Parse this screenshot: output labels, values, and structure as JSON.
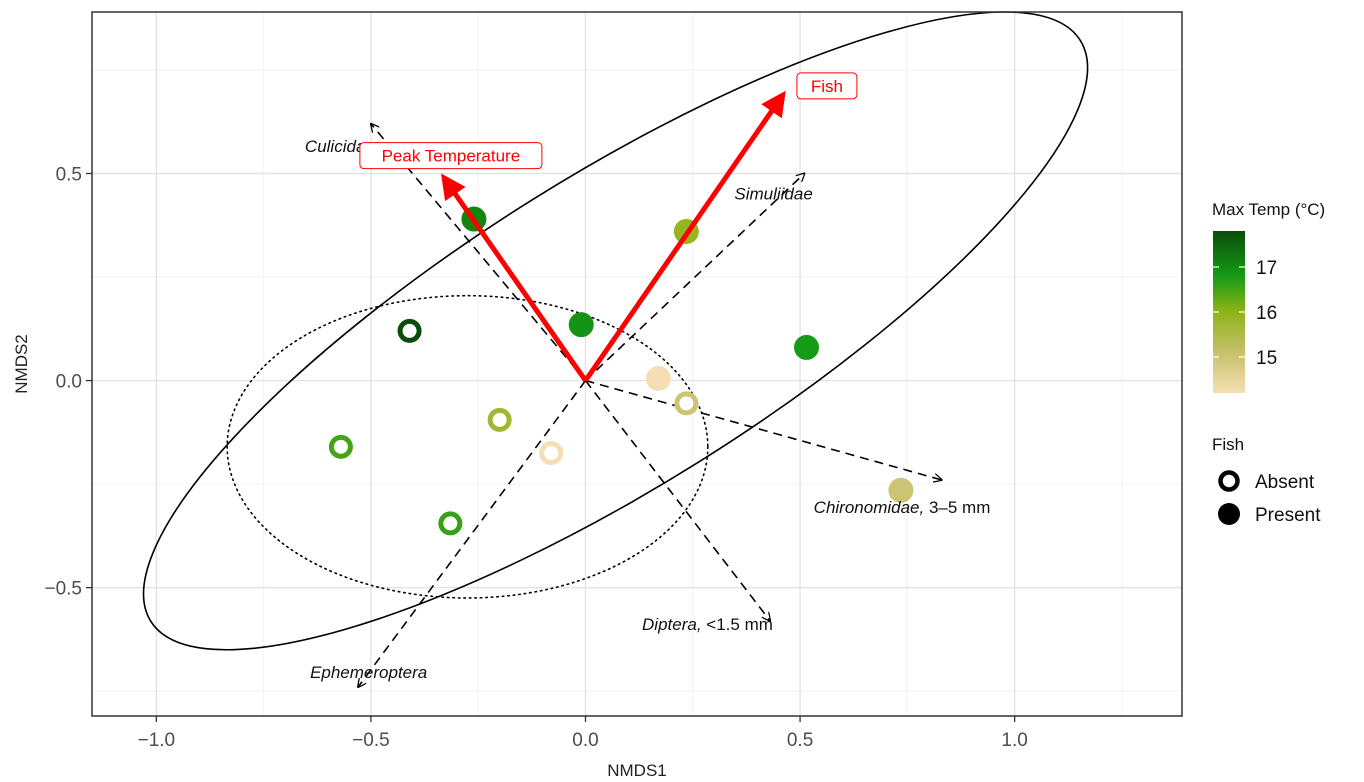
{
  "chart_data": {
    "type": "scatter",
    "title": "",
    "xlabel": "NMDS1",
    "ylabel": "NMDS2",
    "xlim": [
      -1.15,
      1.39
    ],
    "ylim": [
      -0.81,
      0.89
    ],
    "xticks": [
      -1.0,
      -0.5,
      0.0,
      0.5,
      1.0
    ],
    "yticks": [
      -0.5,
      0.0,
      0.5
    ],
    "xtick_labels": [
      "−1.0",
      "−0.5",
      "0.0",
      "0.5",
      "1.0"
    ],
    "ytick_labels": [
      "−0.5",
      "0.0",
      "0.5"
    ],
    "grid": true,
    "colors": {
      "panel_border": "#333333",
      "grid_major": "#e3e3e3",
      "grid_minor": "#f2f2f2",
      "env_arrow": "#ff0000",
      "species_arrow": "#000000"
    },
    "points": [
      {
        "x": -0.26,
        "y": 0.39,
        "temp": 17.1,
        "fish": "Present"
      },
      {
        "x": 0.235,
        "y": 0.36,
        "temp": 15.9,
        "fish": "Present"
      },
      {
        "x": -0.01,
        "y": 0.135,
        "temp": 16.9,
        "fish": "Present"
      },
      {
        "x": 0.515,
        "y": 0.08,
        "temp": 16.8,
        "fish": "Present"
      },
      {
        "x": 0.17,
        "y": 0.005,
        "temp": 14.2,
        "fish": "Present"
      },
      {
        "x": 0.735,
        "y": -0.265,
        "temp": 15.0,
        "fish": "Present"
      },
      {
        "x": -0.41,
        "y": 0.12,
        "temp": 17.8,
        "fish": "Absent"
      },
      {
        "x": 0.235,
        "y": -0.055,
        "temp": 15.0,
        "fish": "Absent"
      },
      {
        "x": -0.2,
        "y": -0.095,
        "temp": 15.7,
        "fish": "Absent"
      },
      {
        "x": -0.57,
        "y": -0.16,
        "temp": 16.5,
        "fish": "Absent"
      },
      {
        "x": -0.08,
        "y": -0.175,
        "temp": 14.2,
        "fish": "Absent"
      },
      {
        "x": -0.315,
        "y": -0.345,
        "temp": 16.6,
        "fish": "Absent"
      }
    ],
    "env_vectors": [
      {
        "label": "Fish",
        "x": 0.46,
        "y": 0.69
      },
      {
        "label": "Peak Temperature",
        "x": -0.33,
        "y": 0.49
      }
    ],
    "species_vectors": [
      {
        "taxon": "Culicidae",
        "suffix": "",
        "x": -0.5,
        "y": 0.62
      },
      {
        "taxon": "Simuliidae",
        "suffix": "",
        "x": 0.51,
        "y": 0.5
      },
      {
        "taxon": "Chironomidae,",
        "suffix": " 3–5 mm",
        "x": 0.83,
        "y": -0.24
      },
      {
        "taxon": "Diptera,",
        "suffix": " <1.5 mm",
        "x": 0.43,
        "y": -0.58
      },
      {
        "taxon": "Ephemeroptera",
        "suffix": "",
        "x": -0.53,
        "y": -0.74
      }
    ],
    "ellipses": [
      {
        "group": "Present",
        "style": "solid",
        "cx": 0.07,
        "cy": 0.12,
        "rx": 1.277,
        "ry": 0.375,
        "angle_deg": -32
      },
      {
        "group": "Absent",
        "style": "dotted",
        "cx": -0.275,
        "cy": -0.16,
        "rx": 0.56,
        "ry": 0.365,
        "angle_deg": 0
      }
    ],
    "legend": {
      "placement": "right",
      "color_title": "Max Temp (°C)",
      "color_range": [
        14.2,
        17.8
      ],
      "color_ticks": [
        15,
        16,
        17
      ],
      "color_stops": [
        {
          "value": 14.2,
          "color": "#f5deb3"
        },
        {
          "value": 15.2,
          "color": "#c2be64"
        },
        {
          "value": 16.0,
          "color": "#8fb417"
        },
        {
          "value": 16.8,
          "color": "#169b16"
        },
        {
          "value": 17.8,
          "color": "#0a4d0a"
        }
      ],
      "shape_title": "Fish",
      "shape_items": [
        "Absent",
        "Present"
      ]
    }
  }
}
